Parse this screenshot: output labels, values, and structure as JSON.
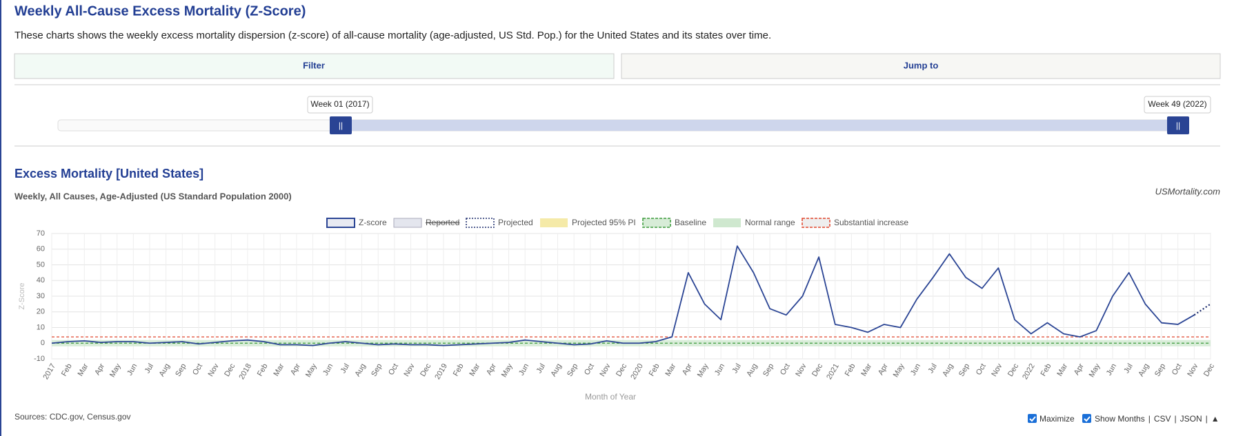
{
  "header": {
    "title": "Weekly All-Cause Excess Mortality (Z-Score)",
    "description": "These charts shows the weekly excess mortality dispersion (z-score) of all-cause mortality (age-adjusted, US Std. Pop.) for the United States and its states over time."
  },
  "controls": {
    "filter": "Filter",
    "jump_to": "Jump to",
    "range_start": "Week 01 (2017)",
    "range_end": "Week 49 (2022)",
    "handle": "||"
  },
  "chart_data": {
    "type": "line",
    "title": "Excess Mortality [United States]",
    "subtitle": "Weekly, All Causes, Age-Adjusted (US Standard Population 2000)",
    "credit": "USMortality.com",
    "xlabel": "Month of Year",
    "ylabel": "Z-Score",
    "categories": [
      "2017",
      "Feb",
      "Mar",
      "Apr",
      "May",
      "Jun",
      "Jul",
      "Aug",
      "Sep",
      "Oct",
      "Nov",
      "Dec",
      "2018",
      "Feb",
      "Mar",
      "Apr",
      "May",
      "Jun",
      "Jul",
      "Aug",
      "Sep",
      "Oct",
      "Nov",
      "Dec",
      "2019",
      "Feb",
      "Mar",
      "Apr",
      "May",
      "Jun",
      "Jul",
      "Aug",
      "Sep",
      "Oct",
      "Nov",
      "Dec",
      "2020",
      "Feb",
      "Mar",
      "Apr",
      "May",
      "Jun",
      "Jul",
      "Aug",
      "Sep",
      "Oct",
      "Nov",
      "Dec",
      "2021",
      "Feb",
      "Mar",
      "Apr",
      "May",
      "Jun",
      "Jul",
      "Aug",
      "Sep",
      "Oct",
      "Nov",
      "Dec",
      "2022",
      "Feb",
      "Mar",
      "Apr",
      "May",
      "Jun",
      "Jul",
      "Aug",
      "Sep",
      "Oct",
      "Nov",
      "Dec"
    ],
    "series": [
      {
        "name": "Z-score",
        "color": "#2a4494",
        "values": [
          0,
          1,
          1.5,
          0.5,
          1,
          1,
          0,
          0.5,
          1,
          -0.5,
          0.5,
          1.5,
          2,
          1,
          -1,
          -1,
          -1.5,
          0,
          1,
          0,
          -1,
          -0.5,
          -1,
          -1,
          -1.5,
          -1,
          -0.5,
          0,
          0.5,
          2,
          1,
          0,
          -1,
          -0.5,
          1.5,
          0,
          0,
          1,
          4,
          45,
          25,
          15,
          62,
          45,
          22,
          18,
          30,
          55,
          12,
          10,
          7,
          12,
          10,
          28,
          42,
          57,
          42,
          35,
          48,
          15,
          6,
          13,
          6,
          4,
          8,
          30,
          45,
          25,
          13,
          12,
          18,
          null
        ]
      },
      {
        "name": "Projected",
        "color": "#1a2a6c",
        "dash": "dotted",
        "values": [
          null,
          null,
          null,
          null,
          null,
          null,
          null,
          null,
          null,
          null,
          null,
          null,
          null,
          null,
          null,
          null,
          null,
          null,
          null,
          null,
          null,
          null,
          null,
          null,
          null,
          null,
          null,
          null,
          null,
          null,
          null,
          null,
          null,
          null,
          null,
          null,
          null,
          null,
          null,
          null,
          null,
          null,
          null,
          null,
          null,
          null,
          null,
          null,
          null,
          null,
          null,
          null,
          null,
          null,
          null,
          null,
          null,
          null,
          null,
          null,
          null,
          null,
          null,
          null,
          null,
          null,
          null,
          null,
          null,
          null,
          18,
          25
        ]
      }
    ],
    "legend": [
      "Z-score",
      "Reported",
      "Projected",
      "Projected 95% PI",
      "Baseline",
      "Normal range",
      "Substantial increase"
    ],
    "baseline": 0,
    "normal_range": [
      -2,
      2
    ],
    "threshold": 4,
    "ylim": [
      -10,
      70
    ],
    "yticks": [
      -10,
      0,
      10,
      20,
      30,
      40,
      50,
      60,
      70
    ],
    "grid": true
  },
  "footer": {
    "sources": "Sources: CDC.gov, Census.gov",
    "maximize": "Maximize",
    "links": [
      "Show Months",
      "CSV",
      "JSON",
      "▲"
    ],
    "separator": "|"
  }
}
